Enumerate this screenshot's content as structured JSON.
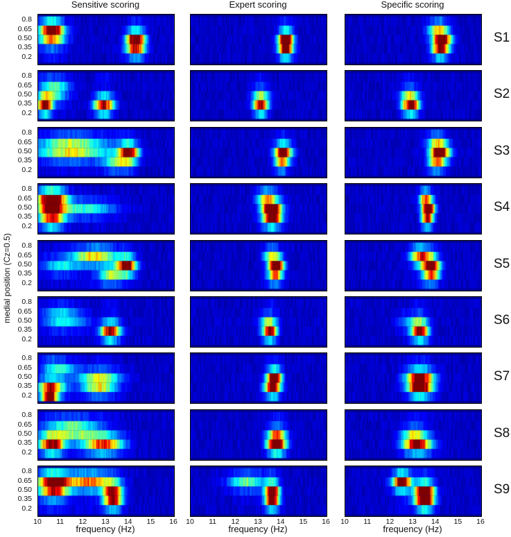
{
  "chart_data": {
    "type": "heatmap",
    "columns": [
      "Sensitive scoring",
      "Expert scoring",
      "Specific scoring"
    ],
    "rows": [
      "S1",
      "S2",
      "S3",
      "S4",
      "S5",
      "S6",
      "S7",
      "S8",
      "S9"
    ],
    "ylabel": "medial position (Cz=0.5)",
    "xlabel": "frequency (Hz)",
    "y_ticks": [
      "0.8",
      "0.65",
      "0.50",
      "0.35",
      "0.2"
    ],
    "x_ticks": [
      "10",
      "11",
      "12",
      "13",
      "14",
      "15",
      "16"
    ],
    "xlim": [
      10,
      16
    ],
    "y_positions": [
      0.8,
      0.65,
      0.5,
      0.35,
      0.2
    ],
    "colormap": "jet",
    "background_color": "#00008f",
    "hotspots": [
      [
        [
          {
            "f": 10.6,
            "p": 0.65,
            "v": 1.0,
            "w": 0.5
          },
          {
            "f": 14.3,
            "p": 0.5,
            "v": 0.9,
            "w": 0.4
          },
          {
            "f": 14.3,
            "p": 0.35,
            "v": 0.6,
            "w": 0.4
          },
          {
            "f": 10.6,
            "p": 0.5,
            "v": 0.4,
            "w": 0.6
          }
        ],
        [
          {
            "f": 14.2,
            "p": 0.5,
            "v": 1.0,
            "w": 0.3
          },
          {
            "f": 14.2,
            "p": 0.35,
            "v": 0.8,
            "w": 0.3
          }
        ],
        [
          {
            "f": 14.3,
            "p": 0.5,
            "v": 1.0,
            "w": 0.35
          },
          {
            "f": 14.2,
            "p": 0.35,
            "v": 0.7,
            "w": 0.35
          },
          {
            "f": 14.0,
            "p": 0.65,
            "v": 0.4,
            "w": 0.4
          }
        ]
      ],
      [
        [
          {
            "f": 10.3,
            "p": 0.35,
            "v": 1.0,
            "w": 0.3
          },
          {
            "f": 12.9,
            "p": 0.35,
            "v": 0.95,
            "w": 0.4
          },
          {
            "f": 10.6,
            "p": 0.5,
            "v": 0.3,
            "w": 0.6
          },
          {
            "f": 10.8,
            "p": 0.65,
            "v": 0.3,
            "w": 0.6
          }
        ],
        [
          {
            "f": 13.1,
            "p": 0.35,
            "v": 0.9,
            "w": 0.3
          },
          {
            "f": 13.1,
            "p": 0.5,
            "v": 0.25,
            "w": 0.4
          }
        ],
        [
          {
            "f": 12.9,
            "p": 0.35,
            "v": 0.95,
            "w": 0.35
          },
          {
            "f": 12.8,
            "p": 0.5,
            "v": 0.3,
            "w": 0.4
          }
        ]
      ],
      [
        [
          {
            "f": 14.0,
            "p": 0.5,
            "v": 1.0,
            "w": 0.4
          },
          {
            "f": 11.5,
            "p": 0.5,
            "v": 0.45,
            "w": 1.5
          },
          {
            "f": 11.5,
            "p": 0.65,
            "v": 0.35,
            "w": 1.5
          },
          {
            "f": 13.5,
            "p": 0.35,
            "v": 0.4,
            "w": 0.6
          }
        ],
        [
          {
            "f": 14.1,
            "p": 0.5,
            "v": 0.95,
            "w": 0.35
          },
          {
            "f": 14.0,
            "p": 0.35,
            "v": 0.4,
            "w": 0.3
          }
        ],
        [
          {
            "f": 14.2,
            "p": 0.5,
            "v": 0.95,
            "w": 0.4
          },
          {
            "f": 14.0,
            "p": 0.35,
            "v": 0.45,
            "w": 0.35
          },
          {
            "f": 14.0,
            "p": 0.65,
            "v": 0.35,
            "w": 0.4
          }
        ]
      ],
      [
        [
          {
            "f": 10.6,
            "p": 0.65,
            "v": 1.0,
            "w": 0.6
          },
          {
            "f": 10.6,
            "p": 0.5,
            "v": 0.6,
            "w": 0.6
          },
          {
            "f": 12.0,
            "p": 0.5,
            "v": 0.35,
            "w": 1.3
          },
          {
            "f": 10.6,
            "p": 0.35,
            "v": 0.6,
            "w": 0.5
          }
        ],
        [
          {
            "f": 13.6,
            "p": 0.5,
            "v": 1.0,
            "w": 0.4
          },
          {
            "f": 13.6,
            "p": 0.35,
            "v": 0.7,
            "w": 0.4
          },
          {
            "f": 13.3,
            "p": 0.65,
            "v": 0.45,
            "w": 0.4
          }
        ],
        [
          {
            "f": 13.7,
            "p": 0.5,
            "v": 0.95,
            "w": 0.25
          },
          {
            "f": 13.6,
            "p": 0.35,
            "v": 0.6,
            "w": 0.25
          },
          {
            "f": 13.5,
            "p": 0.65,
            "v": 0.55,
            "w": 0.25
          }
        ]
      ],
      [
        [
          {
            "f": 13.9,
            "p": 0.5,
            "v": 1.0,
            "w": 0.4
          },
          {
            "f": 12.5,
            "p": 0.65,
            "v": 0.6,
            "w": 0.9
          },
          {
            "f": 13.2,
            "p": 0.35,
            "v": 0.45,
            "w": 0.5
          },
          {
            "f": 11.0,
            "p": 0.5,
            "v": 0.3,
            "w": 0.8
          }
        ],
        [
          {
            "f": 13.8,
            "p": 0.5,
            "v": 1.0,
            "w": 0.3
          },
          {
            "f": 13.5,
            "p": 0.65,
            "v": 0.4,
            "w": 0.3
          },
          {
            "f": 13.7,
            "p": 0.35,
            "v": 0.45,
            "w": 0.3
          }
        ],
        [
          {
            "f": 13.8,
            "p": 0.5,
            "v": 1.0,
            "w": 0.35
          },
          {
            "f": 13.3,
            "p": 0.65,
            "v": 0.75,
            "w": 0.4
          },
          {
            "f": 13.8,
            "p": 0.35,
            "v": 0.45,
            "w": 0.35
          }
        ]
      ],
      [
        [
          {
            "f": 13.2,
            "p": 0.35,
            "v": 0.95,
            "w": 0.4
          },
          {
            "f": 11.2,
            "p": 0.5,
            "v": 0.25,
            "w": 1.0
          },
          {
            "f": 11.0,
            "p": 0.65,
            "v": 0.2,
            "w": 0.8
          }
        ],
        [
          {
            "f": 13.5,
            "p": 0.35,
            "v": 0.9,
            "w": 0.3
          },
          {
            "f": 13.4,
            "p": 0.5,
            "v": 0.25,
            "w": 0.4
          }
        ],
        [
          {
            "f": 13.3,
            "p": 0.35,
            "v": 1.0,
            "w": 0.35
          },
          {
            "f": 13.0,
            "p": 0.5,
            "v": 0.25,
            "w": 0.6
          }
        ]
      ],
      [
        [
          {
            "f": 10.5,
            "p": 0.2,
            "v": 1.0,
            "w": 0.3
          },
          {
            "f": 10.6,
            "p": 0.35,
            "v": 0.6,
            "w": 0.6
          },
          {
            "f": 12.7,
            "p": 0.35,
            "v": 0.45,
            "w": 0.7
          },
          {
            "f": 12.7,
            "p": 0.5,
            "v": 0.4,
            "w": 0.9
          },
          {
            "f": 11.0,
            "p": 0.65,
            "v": 0.3,
            "w": 0.7
          }
        ],
        [
          {
            "f": 13.7,
            "p": 0.5,
            "v": 0.95,
            "w": 0.3
          },
          {
            "f": 13.6,
            "p": 0.35,
            "v": 0.75,
            "w": 0.35
          }
        ],
        [
          {
            "f": 13.3,
            "p": 0.35,
            "v": 0.95,
            "w": 0.5
          },
          {
            "f": 13.3,
            "p": 0.5,
            "v": 0.75,
            "w": 0.6
          }
        ]
      ],
      [
        [
          {
            "f": 10.6,
            "p": 0.35,
            "v": 0.95,
            "w": 0.5
          },
          {
            "f": 12.9,
            "p": 0.35,
            "v": 0.75,
            "w": 0.8
          },
          {
            "f": 11.6,
            "p": 0.5,
            "v": 0.35,
            "w": 1.3
          },
          {
            "f": 11.5,
            "p": 0.65,
            "v": 0.3,
            "w": 1.0
          }
        ],
        [
          {
            "f": 13.8,
            "p": 0.35,
            "v": 1.0,
            "w": 0.4
          },
          {
            "f": 13.8,
            "p": 0.5,
            "v": 0.45,
            "w": 0.4
          }
        ],
        [
          {
            "f": 13.2,
            "p": 0.35,
            "v": 0.85,
            "w": 0.6
          },
          {
            "f": 13.0,
            "p": 0.5,
            "v": 0.35,
            "w": 0.5
          }
        ]
      ],
      [
        [
          {
            "f": 10.7,
            "p": 0.65,
            "v": 1.0,
            "w": 0.7
          },
          {
            "f": 12.3,
            "p": 0.65,
            "v": 0.7,
            "w": 0.9
          },
          {
            "f": 13.3,
            "p": 0.5,
            "v": 0.75,
            "w": 0.4
          },
          {
            "f": 13.3,
            "p": 0.35,
            "v": 0.7,
            "w": 0.4
          },
          {
            "f": 10.7,
            "p": 0.5,
            "v": 0.55,
            "w": 0.6
          }
        ],
        [
          {
            "f": 13.6,
            "p": 0.5,
            "v": 0.95,
            "w": 0.3
          },
          {
            "f": 13.6,
            "p": 0.35,
            "v": 0.75,
            "w": 0.3
          },
          {
            "f": 12.5,
            "p": 0.65,
            "v": 0.4,
            "w": 0.8
          }
        ],
        [
          {
            "f": 12.5,
            "p": 0.65,
            "v": 1.0,
            "w": 0.4
          },
          {
            "f": 13.5,
            "p": 0.5,
            "v": 1.0,
            "w": 0.4
          },
          {
            "f": 13.5,
            "p": 0.35,
            "v": 0.9,
            "w": 0.4
          }
        ]
      ]
    ]
  }
}
